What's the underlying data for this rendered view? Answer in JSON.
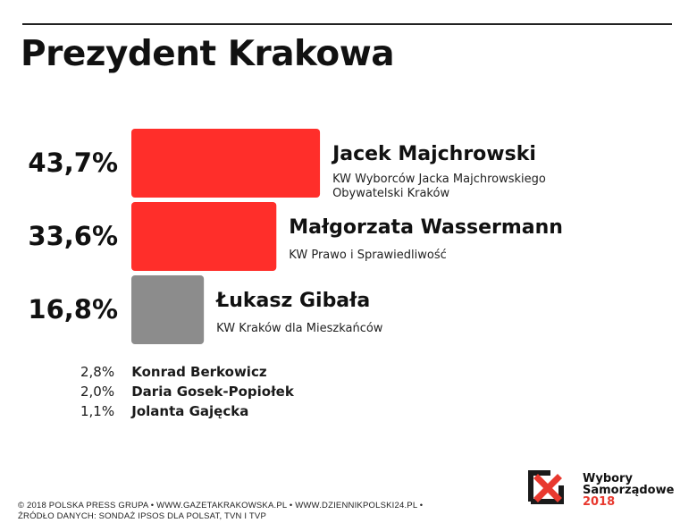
{
  "title": "Prezydent Krakowa",
  "colors": {
    "leader": "#ff2e2a",
    "second": "#ff2e2a",
    "third": "#8c8c8c",
    "brand": "#e8392f"
  },
  "chart_data": {
    "type": "bar",
    "orientation": "horizontal",
    "unit": "%",
    "bars": [
      {
        "label": "43,7%",
        "value": 43.7,
        "name": "Jacek Majchrowski",
        "party": [
          "KW Wyborców Jacka Majchrowskiego",
          "Obywatelski Kraków"
        ],
        "color": "#ff2e2a"
      },
      {
        "label": "33,6%",
        "value": 33.6,
        "name": "Małgorzata Wassermann",
        "party": [
          "KW Prawo i Sprawiedliwość"
        ],
        "color": "#ff2e2a"
      },
      {
        "label": "16,8%",
        "value": 16.8,
        "name": "Łukasz Gibała",
        "party": [
          "KW Kraków dla Mieszkańców"
        ],
        "color": "#8c8c8c"
      }
    ],
    "others": [
      {
        "label": "2,8%",
        "value": 2.8,
        "name": "Konrad Berkowicz"
      },
      {
        "label": "2,0%",
        "value": 2.0,
        "name": "Daria Gosek-Popiołek"
      },
      {
        "label": "1,1%",
        "value": 1.1,
        "name": "Jolanta Gajęcka"
      }
    ]
  },
  "footer": {
    "line1": "© 2018 POLSKA PRESS GRUPA  •  WWW.GAZETAKRAKOWSKA.PL  •  WWW.DZIENNIKPOLSKI24.PL  •",
    "line2": "ŹRÓDŁO DANYCH: SONDAŻ IPSOS DLA POLSAT, TVN I TVP"
  },
  "logo": {
    "icon": "ballot-box-x-icon",
    "line1": "Wybory",
    "line2": "Samorządowe",
    "year": "2018"
  }
}
